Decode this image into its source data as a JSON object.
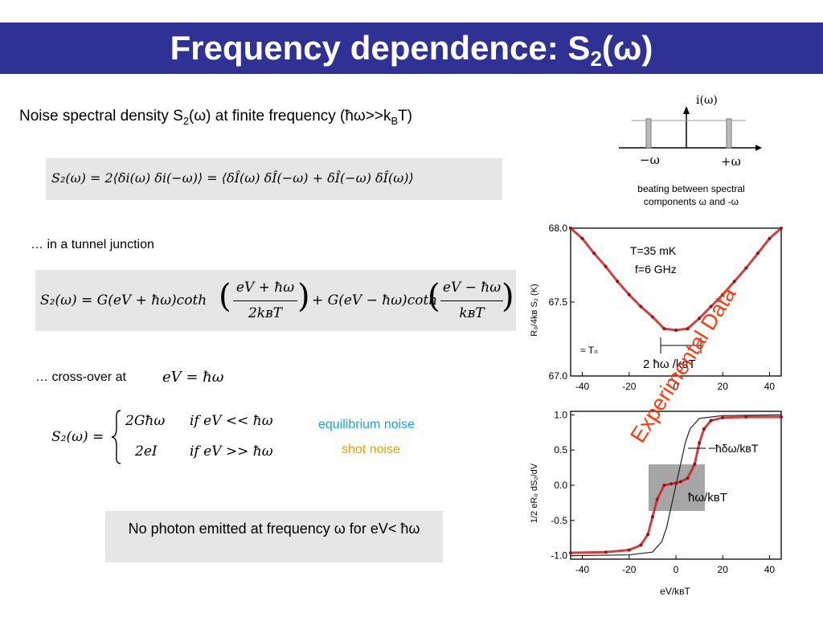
{
  "slide": {
    "title": "Frequency dependence: S",
    "title_sub": "2",
    "title_tail": "(ω)",
    "intro": {
      "prefix": "Noise spectral density S",
      "sub": "2",
      "mid": "(ω) at finite frequency (ħω>>k",
      "sub2": "B",
      "tail": "T)"
    },
    "eq1": "S₂(ω) = 2⟨δi(ω) δi(−ω)⟩ = ⟨δÎ(ω) δÎ(−ω) + δÎ(−ω) δÎ(ω)⟩",
    "tunnel_label": "… in a tunnel junction",
    "eq2": {
      "lhs": "S₂(ω) = G(eV + ħω)coth",
      "frac1_num": "eV + ħω",
      "frac1_den": "2kʙT",
      "mid": "+ G(eV − ħω)coth",
      "frac2_num": "eV − ħω",
      "frac2_den": "kʙT"
    },
    "crossover_label": "… cross-over at",
    "crossover_eq": "eV = ħω",
    "cases": {
      "lhs": "S₂(ω) =",
      "case1_val": "2Għω",
      "case1_cond": "if  eV << ħω",
      "case2_val": "2eI",
      "case2_cond": "if  eV >> ħω"
    },
    "equilibrium_label": "equilibrium noise",
    "shot_label": "shot noise",
    "note": "No photon emitted at frequency ω  for eV< ħω",
    "spectrum_diagram": {
      "axis_label": "i(ω)",
      "neg_label": "−ω",
      "pos_label": "+ω",
      "caption_line1": "beating between spectral",
      "caption_line2": "components ω and -ω"
    },
    "experimental_label": "Experimental Data",
    "colors": {
      "title_bar": "#2f3294",
      "equilibrium": "#1aa0d8",
      "shot": "#f0a000",
      "experimental": "#ff3a10",
      "data": "#c82020"
    }
  },
  "chart_data": [
    {
      "type": "scatter",
      "title": "",
      "annotations": [
        "T=35 mK",
        "f=6 GHz",
        "≈ Tₙ",
        "2 ħω /kʙT"
      ],
      "xlabel": "",
      "ylabel": "R₀/4kʙ S₂ (K)",
      "xlim": [
        -45,
        45
      ],
      "ylim": [
        67.0,
        68.0
      ],
      "xticks": [
        "-40",
        "-20",
        "0",
        "20",
        "40"
      ],
      "yticks": [
        "67.0",
        "67.5",
        "68.0"
      ],
      "series": [
        {
          "x": [
            -45,
            -40,
            -35,
            -30,
            -25,
            -20,
            -15,
            -10,
            -5,
            0,
            5,
            10,
            15,
            20,
            25,
            30,
            35,
            40,
            45
          ],
          "values": [
            68.05,
            67.93,
            67.83,
            67.74,
            67.64,
            67.55,
            67.47,
            67.4,
            67.32,
            67.31,
            67.32,
            67.39,
            67.47,
            67.55,
            67.64,
            67.73,
            67.83,
            67.93,
            68.04
          ]
        }
      ]
    },
    {
      "type": "line",
      "title": "",
      "annotations": [
        "ħδω/kʙT",
        "ħω/kʙT"
      ],
      "xlabel": "eV/kʙT",
      "ylabel": "1/2 eR₀ dS₂/dV",
      "xlim": [
        -45,
        45
      ],
      "ylim": [
        -1.05,
        1.05
      ],
      "xticks": [
        "-40",
        "-20",
        "0",
        "20",
        "40"
      ],
      "yticks": [
        "-1.0",
        "-0.5",
        "0.0",
        "0.5",
        "1.0"
      ],
      "series": [
        {
          "x": [
            -45,
            -30,
            -20,
            -15,
            -12,
            -10,
            -8,
            -5,
            -2,
            0,
            2,
            5,
            8,
            10,
            12,
            15,
            20,
            30,
            45
          ],
          "values": [
            -0.96,
            -0.95,
            -0.92,
            -0.85,
            -0.7,
            -0.45,
            -0.2,
            0.0,
            0.02,
            0.03,
            0.05,
            0.1,
            0.3,
            0.6,
            0.8,
            0.92,
            0.96,
            0.97,
            0.97
          ]
        },
        {
          "x": [
            -45,
            -20,
            -10,
            -6,
            -4,
            -2,
            0,
            2,
            4,
            6,
            10,
            20,
            45
          ],
          "values": [
            -1.0,
            -0.99,
            -0.95,
            -0.8,
            -0.6,
            -0.3,
            0.0,
            0.3,
            0.6,
            0.8,
            0.95,
            0.99,
            1.0
          ]
        }
      ]
    }
  ]
}
